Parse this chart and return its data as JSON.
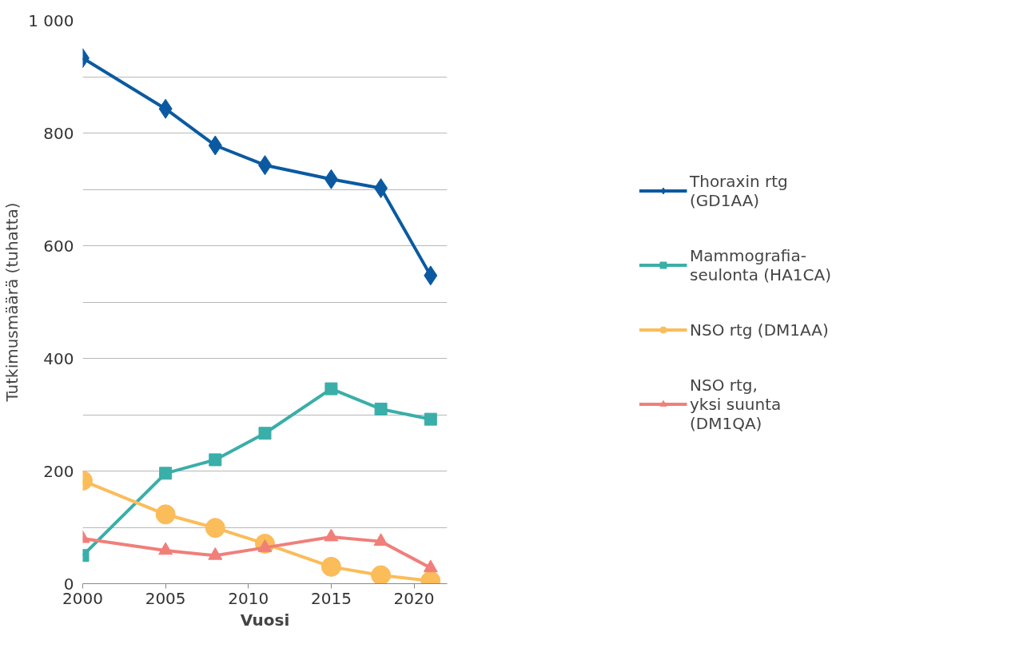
{
  "chart_data": {
    "type": "line",
    "xlabel": "Vuosi",
    "ylabel": "Tutkimusmäärä (tuhatta)",
    "x": [
      2000,
      2005,
      2008,
      2011,
      2015,
      2018,
      2021
    ],
    "series": [
      {
        "name": "Thoraxin rtg\n(GD1AA)",
        "color": "#0b5aa1",
        "marker": "diamond",
        "values": [
          933,
          843,
          778,
          743,
          718,
          702,
          547
        ]
      },
      {
        "name": "Mammografia-\nseulonta (HA1CA)",
        "color": "#3aaea8",
        "marker": "square",
        "values": [
          50,
          196,
          220,
          267,
          346,
          310,
          292
        ]
      },
      {
        "name": "NSO rtg (DM1AA)",
        "color": "#fbbc5a",
        "marker": "circle",
        "values": [
          183,
          123,
          99,
          71,
          30,
          15,
          5
        ]
      },
      {
        "name": "NSO rtg,\nyksi suunta\n(DM1QA)",
        "color": "#f07f7a",
        "marker": "triangle",
        "values": [
          80,
          59,
          50,
          64,
          83,
          75,
          28
        ]
      }
    ],
    "xlim": [
      2000,
      2022
    ],
    "xticks": [
      2000,
      2005,
      2010,
      2015,
      2020
    ],
    "ylim": [
      0,
      1000
    ],
    "yticks": [
      0,
      {
        "value": 100,
        "label": null
      },
      200,
      {
        "value": 300,
        "label": null
      },
      400,
      {
        "value": 500,
        "label": null
      },
      600,
      {
        "value": 700,
        "label": null
      },
      800,
      {
        "value": 900,
        "label": null
      },
      {
        "value": 1000,
        "label": "1 000"
      }
    ],
    "grid": "y",
    "legend": "right",
    "line_style": "solid"
  }
}
